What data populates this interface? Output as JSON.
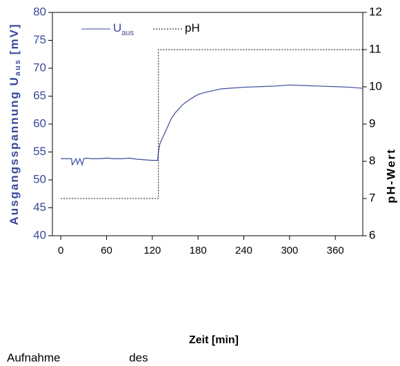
{
  "chart_data": {
    "type": "line",
    "y_label": {
      "main": "Ausgangsspannung U",
      "sub": "aus",
      "unit": "[mV]"
    },
    "y2_label": "pH-Wert",
    "x_label": "Zeit [min]",
    "caption": "Aufnahme des",
    "xlim": [
      -11,
      396
    ],
    "xticks": [
      0,
      60,
      120,
      180,
      240,
      300,
      360
    ],
    "ylim": [
      40,
      80
    ],
    "yticks": [
      40,
      45,
      50,
      55,
      60,
      65,
      70,
      75,
      80
    ],
    "y2lim": [
      6,
      12
    ],
    "y2ticks": [
      6,
      7,
      8,
      9,
      10,
      11,
      12
    ],
    "series": [
      {
        "name": "U",
        "name_sub": "aus",
        "color": "#3a4a9c",
        "style": "solid",
        "x": [
          0,
          10,
          14,
          15,
          20,
          22,
          25,
          28,
          30,
          35,
          40,
          50,
          60,
          70,
          80,
          90,
          100,
          110,
          120,
          127,
          128,
          130,
          135,
          140,
          145,
          150,
          160,
          170,
          180,
          190,
          200,
          210,
          220,
          240,
          260,
          280,
          300,
          320,
          340,
          360,
          380,
          396
        ],
        "values": [
          53.8,
          53.8,
          53.8,
          52.7,
          53.8,
          52.8,
          53.8,
          52.7,
          53.8,
          53.9,
          53.8,
          53.8,
          53.9,
          53.8,
          53.8,
          53.9,
          53.7,
          53.6,
          53.5,
          53.5,
          55,
          56.5,
          58,
          59.5,
          61,
          62,
          63.5,
          64.5,
          65.3,
          65.7,
          66,
          66.3,
          66.4,
          66.6,
          66.7,
          66.8,
          67,
          66.9,
          66.8,
          66.7,
          66.6,
          66.4
        ]
      },
      {
        "name": "pH",
        "color": "#000000",
        "style": "dotted",
        "axis": "y2",
        "x": [
          0,
          128,
          128,
          396
        ],
        "values": [
          7,
          7,
          11,
          11
        ]
      }
    ]
  }
}
